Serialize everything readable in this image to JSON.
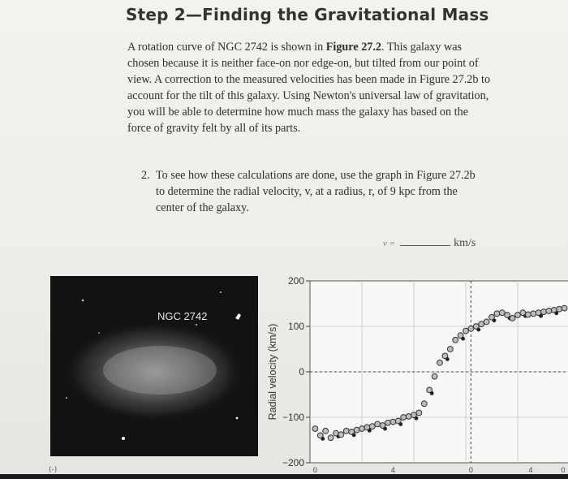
{
  "heading": "Step 2—Finding the Gravitational Mass",
  "intro": {
    "part1": "A rotation curve of NGC 2742 is shown in ",
    "figure_ref": "Figure 27.2",
    "part2": ". This galaxy was chosen because it is neither face-on nor edge-on, but tilted from our point of view. A correction to the measured velocities has been made in Figure 27.2b to account for the tilt of this galaxy. Using Newton's universal law of gravitation, you will be able to determine how much mass the galaxy has based on the force of gravity felt by all of its parts."
  },
  "question": {
    "number": "2.",
    "text": "To see how these calculations are done, use the graph in Figure 27.2b to determine the radial velocity, v, at a radius, r, of 9 kpc from the center of the galaxy."
  },
  "answer": {
    "var": "v =",
    "unit": "km/s"
  },
  "photo": {
    "label": "NGC 2742"
  },
  "footer": {
    "mark": "(-)"
  },
  "colors": {
    "background": "#efeeea",
    "text": "#2f2f2f",
    "photo_bg": "#121212",
    "point_fill": "#bdbdbd",
    "grid": "#cfcfcf"
  },
  "chart_data": {
    "type": "scatter",
    "ylabel": "Radial velocity (km/s)",
    "ylim": [
      -200,
      200
    ],
    "yticks": [
      200,
      100,
      0,
      -100,
      -200
    ],
    "ytick_labels": [
      "200",
      "100",
      "0",
      "−100",
      "−200"
    ],
    "xtick_labels": [
      "0",
      "4",
      "0",
      "4",
      "0"
    ],
    "grid": true,
    "series": [
      {
        "x": [
          0.02,
          0.04,
          0.06,
          0.08,
          0.1,
          0.12,
          0.14,
          0.16,
          0.18,
          0.2,
          0.22,
          0.24,
          0.26,
          0.28,
          0.3,
          0.32,
          0.34,
          0.36,
          0.38,
          0.4,
          0.42,
          0.44,
          0.46,
          0.48,
          0.5,
          0.52,
          0.54,
          0.56,
          0.58,
          0.6,
          0.62,
          0.64,
          0.66,
          0.68,
          0.7,
          0.72,
          0.74,
          0.76,
          0.78,
          0.8,
          0.82,
          0.84,
          0.86,
          0.88,
          0.9,
          0.92,
          0.94,
          0.96,
          0.98
        ],
        "y": [
          -125,
          -140,
          -130,
          -145,
          -135,
          -138,
          -130,
          -132,
          -128,
          -125,
          -122,
          -120,
          -115,
          -118,
          -112,
          -110,
          -108,
          -100,
          -98,
          -95,
          -90,
          -70,
          -40,
          -10,
          20,
          35,
          50,
          70,
          80,
          90,
          95,
          100,
          105,
          110,
          120,
          128,
          130,
          125,
          118,
          125,
          130,
          126,
          128,
          130,
          132,
          134,
          136,
          138,
          140
        ]
      }
    ]
  }
}
